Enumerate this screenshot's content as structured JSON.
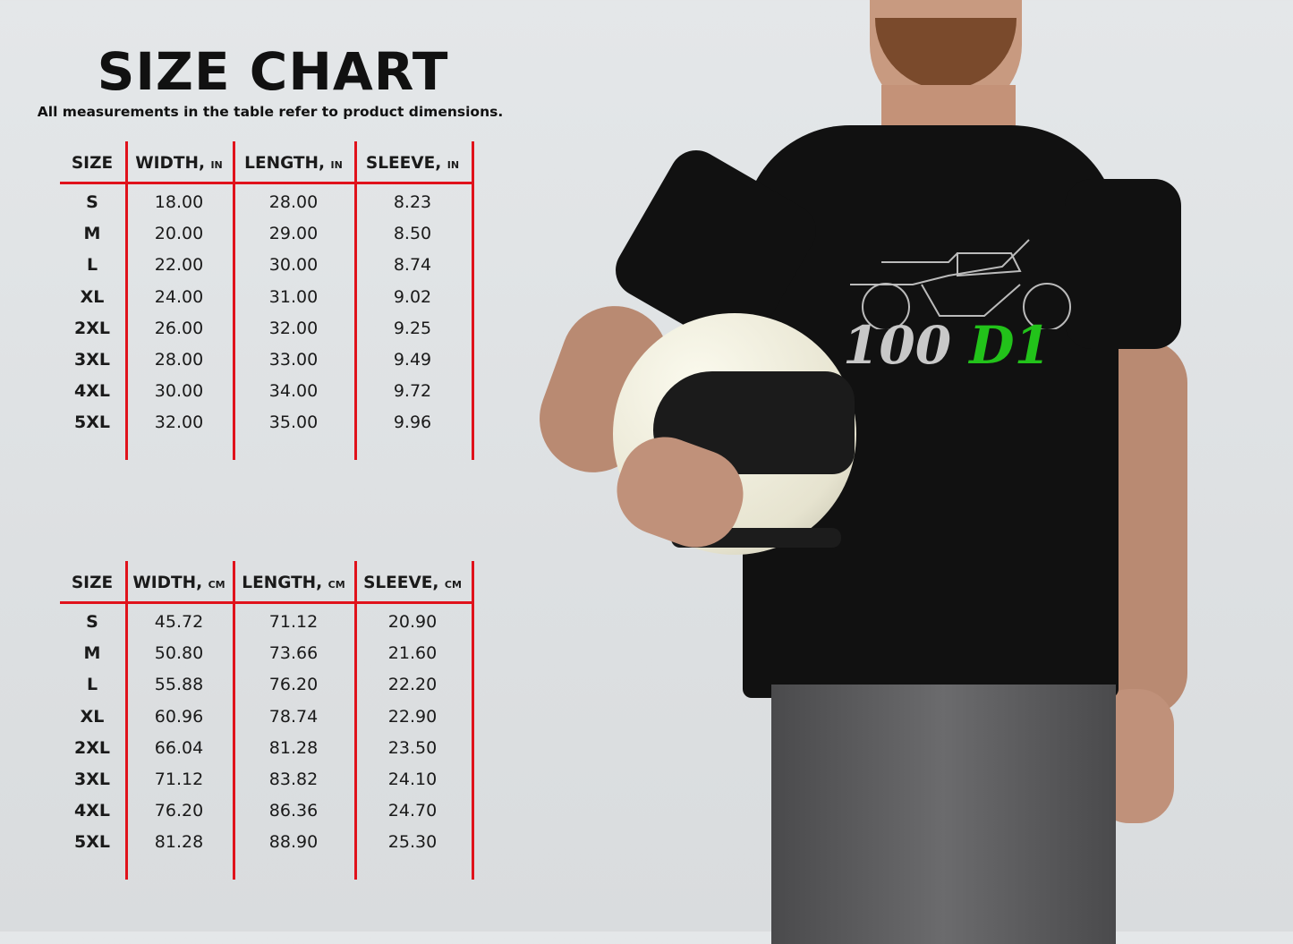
{
  "title": "SIZE CHART",
  "subtitle": "All measurements in the table refer to product dimensions.",
  "colors": {
    "rule": "#e0121b",
    "shirt": "#111111",
    "print_green": "#22c21a",
    "print_grey": "#c8c8c8"
  },
  "tables": [
    {
      "headers": [
        {
          "label": "SIZE",
          "unit": ""
        },
        {
          "label": "WIDTH,",
          "unit": "IN"
        },
        {
          "label": "LENGTH,",
          "unit": "IN"
        },
        {
          "label": "SLEEVE,",
          "unit": "IN"
        }
      ],
      "rows": [
        [
          "S",
          "18.00",
          "28.00",
          "8.23"
        ],
        [
          "M",
          "20.00",
          "29.00",
          "8.50"
        ],
        [
          "L",
          "22.00",
          "30.00",
          "8.74"
        ],
        [
          "XL",
          "24.00",
          "31.00",
          "9.02"
        ],
        [
          "2XL",
          "26.00",
          "32.00",
          "9.25"
        ],
        [
          "3XL",
          "28.00",
          "33.00",
          "9.49"
        ],
        [
          "4XL",
          "30.00",
          "34.00",
          "9.72"
        ],
        [
          "5XL",
          "32.00",
          "35.00",
          "9.96"
        ]
      ]
    },
    {
      "headers": [
        {
          "label": "SIZE",
          "unit": ""
        },
        {
          "label": "WIDTH,",
          "unit": "CM"
        },
        {
          "label": "LENGTH,",
          "unit": "CM"
        },
        {
          "label": "SLEEVE,",
          "unit": "CM"
        }
      ],
      "rows": [
        [
          "S",
          "45.72",
          "71.12",
          "20.90"
        ],
        [
          "M",
          "50.80",
          "73.66",
          "21.60"
        ],
        [
          "L",
          "55.88",
          "76.20",
          "22.20"
        ],
        [
          "XL",
          "60.96",
          "78.74",
          "22.90"
        ],
        [
          "2XL",
          "66.04",
          "81.28",
          "23.50"
        ],
        [
          "3XL",
          "71.12",
          "83.82",
          "24.10"
        ],
        [
          "4XL",
          "76.20",
          "86.36",
          "24.70"
        ],
        [
          "5XL",
          "81.28",
          "88.90",
          "25.30"
        ]
      ]
    }
  ],
  "shirt_print": {
    "number": "100",
    "model": "D1"
  }
}
